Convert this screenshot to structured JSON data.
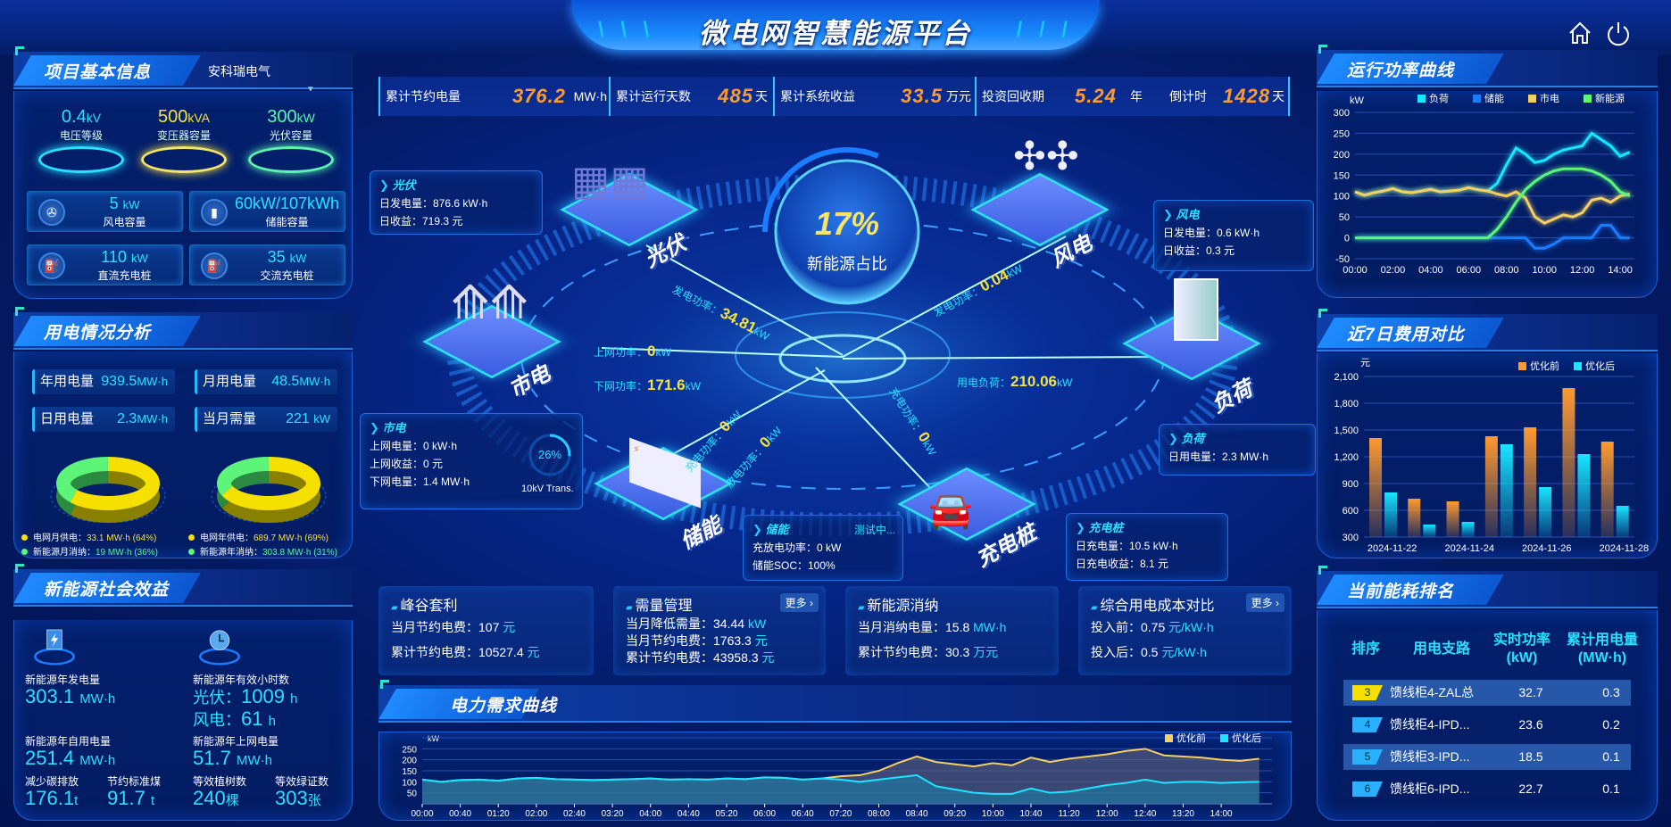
{
  "header": {
    "title": "微电网智慧能源平台",
    "home_icon": "home-icon",
    "power_icon": "power-icon"
  },
  "project_info": {
    "title": "项目基本信息",
    "company": "安科瑞电气",
    "kpis": [
      {
        "value": "0.4",
        "unit": "kV",
        "label": "电压等级",
        "color": "#29e1ff"
      },
      {
        "value": "500",
        "unit": "kVA",
        "label": "变压器容量",
        "color": "#f5e33a"
      },
      {
        "value": "300",
        "unit": "kW",
        "label": "光伏容量",
        "color": "#5cf5b0"
      }
    ],
    "capacities": [
      {
        "value": "5",
        "unit": "kW",
        "label": "风电容量",
        "icon": "wind-turbine-icon"
      },
      {
        "value": "60kW/107kWh",
        "unit": "",
        "label": "储能容量",
        "icon": "battery-icon"
      },
      {
        "value": "110",
        "unit": "kW",
        "label": "直流充电桩",
        "icon": "charger-icon"
      },
      {
        "value": "35",
        "unit": "kW",
        "label": "交流充电桩",
        "icon": "charger-icon"
      }
    ]
  },
  "usage": {
    "title": "用电情况分析",
    "items": [
      {
        "label": "年用电量",
        "value": "939.5",
        "unit": "MW·h"
      },
      {
        "label": "月用电量",
        "value": "48.5",
        "unit": "MW·h"
      },
      {
        "label": "日用电量",
        "value": "2.3",
        "unit": "MW·h"
      },
      {
        "label": "当月需量",
        "value": "221",
        "unit": "kW"
      }
    ],
    "donuts": [
      {
        "grid_pct": 64,
        "renewable_pct": 36,
        "grid_label": "电网月供电：",
        "grid_value": "33.1 MW·h (64%)",
        "ren_label": "新能源月消纳：",
        "ren_value": "19 MW·h (36%)"
      },
      {
        "grid_pct": 69,
        "renewable_pct": 31,
        "grid_label": "电网年供电：",
        "grid_value": "689.7 MW·h (69%)",
        "ren_label": "新能源年消纳：",
        "ren_value": "303.8 MW·h (31%)"
      }
    ],
    "colors": {
      "grid": "#f5e000",
      "renewable": "#5cf57a"
    }
  },
  "social": {
    "title": "新能源社会效益",
    "annual_gen_label": "新能源年发电量",
    "annual_gen_value": "303.1",
    "annual_gen_unit": "MW·h",
    "hours_label": "新能源年有效小时数",
    "pv_hours_label": "光伏：",
    "pv_hours": "1009",
    "wind_hours_label": "风电：",
    "wind_hours": "61",
    "hours_unit": "h",
    "self_use_label": "新能源年自用电量",
    "self_use_value": "251.4",
    "self_use_unit": "MW·h",
    "grid_feed_label": "新能源年上网电量",
    "grid_feed_value": "51.7",
    "grid_feed_unit": "MW·h",
    "carbon_label": "减少碳排放",
    "carbon_value": "176.1",
    "carbon_unit": "t",
    "coal_label": "节约标准煤",
    "coal_value": "91.7",
    "coal_unit": "t",
    "trees_label": "等效植树数",
    "trees_value": "240",
    "trees_unit": "棵",
    "cert_label": "等效绿证数",
    "cert_value": "303",
    "cert_unit": "张"
  },
  "stats": [
    {
      "label": "累计节约电量",
      "value": "376.2",
      "unit": "MW·h"
    },
    {
      "label": "累计运行天数",
      "value": "485",
      "unit": "天"
    },
    {
      "label": "累计系统收益",
      "value": "33.5",
      "unit": "万元"
    },
    {
      "label": "投资回收期",
      "value": "5.24",
      "unit": "年"
    },
    {
      "label": "倒计时",
      "value": "1428",
      "unit": "天"
    }
  ],
  "center": {
    "ratio": "17%",
    "ratio_label": "新能源占比",
    "ratio_value": 17,
    "nodes": {
      "pv": "光伏",
      "grid": "市电",
      "storage": "储能",
      "charger": "充电桩",
      "load": "负荷",
      "wind": "风电"
    },
    "flows": {
      "pv": {
        "label": "发电功率：",
        "value": "34.81",
        "unit": "kW"
      },
      "grid_up": {
        "label": "上网功率：",
        "value": "0",
        "unit": "kW"
      },
      "grid_down": {
        "label": "下网功率：",
        "value": "171.6",
        "unit": "kW"
      },
      "wind": {
        "label": "发电功率：",
        "value": "0.04",
        "unit": "kW"
      },
      "load": {
        "label": "用电负荷：",
        "value": "210.06",
        "unit": "kW"
      },
      "storage_charge": {
        "label": "充电功率：",
        "value": "0",
        "unit": "kW"
      },
      "storage_discharge": {
        "label": "放电功率：",
        "value": "0",
        "unit": "kW"
      },
      "charger": {
        "label": "充电功率：",
        "value": "0",
        "unit": "kW"
      }
    },
    "transformer": {
      "load_pct": "26%",
      "load_value": 26,
      "label": "10kV Trans."
    },
    "boxes": {
      "pv": {
        "title": "光伏",
        "rows": [
          "日发电量：876.6 kW·h",
          "日收益：719.3 元"
        ]
      },
      "wind": {
        "title": "风电",
        "rows": [
          "日发电量：0.6 kW·h",
          "日收益：0.3 元"
        ]
      },
      "grid": {
        "title": "市电",
        "rows": [
          "上网电量：0 kW·h",
          "上网收益：0 元",
          "下网电量：1.4 MW·h"
        ]
      },
      "load": {
        "title": "负荷",
        "rows": [
          "日用电量：2.3 MW·h"
        ]
      },
      "storage": {
        "title": "储能",
        "status": "测试中...",
        "rows": [
          "充放电功率：0 kW",
          "储能SOC：100%"
        ]
      },
      "charger": {
        "title": "充电桩",
        "rows": [
          "日充电量：10.5 kW·h",
          "日充电收益：8.1 元"
        ]
      }
    }
  },
  "cards": [
    {
      "title": "峰谷套利",
      "rows": [
        {
          "label": "当月节约电费：",
          "value": "107",
          "unit": "元"
        },
        {
          "label": "累计节约电费：",
          "value": "10527.4",
          "unit": "元"
        }
      ]
    },
    {
      "title": "需量管理",
      "more": "更多 ›",
      "rows": [
        {
          "label": "当月降低需量：",
          "value": "34.44",
          "unit": "kW"
        },
        {
          "label": "当月节约电费：",
          "value": "1763.3",
          "unit": "元"
        },
        {
          "label": "累计节约电费：",
          "value": "43958.3",
          "unit": "元"
        }
      ]
    },
    {
      "title": "新能源消纳",
      "rows": [
        {
          "label": "当月消纳电量：",
          "value": "15.8",
          "unit": "MW·h"
        },
        {
          "label": "累计节约电费：",
          "value": "30.3",
          "unit": "万元"
        }
      ]
    },
    {
      "title": "综合用电成本对比",
      "more": "更多 ›",
      "rows": [
        {
          "label": "投入前：",
          "value": "0.75",
          "unit": "元/kW·h"
        },
        {
          "label": "投入后：",
          "value": "0.5",
          "unit": "元/kW·h"
        }
      ]
    }
  ],
  "ranking": {
    "title": "当前能耗排名",
    "headers": [
      "排序",
      "用电支路",
      "实时功率\n(kW)",
      "累计用电量\n(MW·h)"
    ],
    "rows": [
      {
        "rank": "3",
        "name": "馈线柜4-ZAL总",
        "power": "32.7",
        "energy": "0.3",
        "badge": "#f5e000"
      },
      {
        "rank": "4",
        "name": "馈线柜4-IPD...",
        "power": "23.6",
        "energy": "0.2",
        "badge": "#2ab0ff"
      },
      {
        "rank": "5",
        "name": "馈线柜3-IPD...",
        "power": "18.5",
        "energy": "0.1",
        "badge": "#2ab0ff"
      },
      {
        "rank": "6",
        "name": "馈线柜6-IPD...",
        "power": "22.7",
        "energy": "0.1",
        "badge": "#2ab0ff"
      }
    ]
  },
  "chart_data": [
    {
      "id": "run-power",
      "title": "运行功率曲线",
      "type": "line",
      "ylabel": "kW",
      "ylim": [
        -50,
        300
      ],
      "yticks": [
        -50,
        0,
        50,
        100,
        150,
        200,
        250,
        300
      ],
      "xticks": [
        "00:00",
        "02:00",
        "04:00",
        "06:00",
        "08:00",
        "10:00",
        "12:00",
        "14:00"
      ],
      "x": [
        "00:00",
        "00:30",
        "01:00",
        "01:30",
        "02:00",
        "02:30",
        "03:00",
        "03:30",
        "04:00",
        "04:30",
        "05:00",
        "05:30",
        "06:00",
        "06:30",
        "07:00",
        "07:30",
        "08:00",
        "08:30",
        "09:00",
        "09:30",
        "10:00",
        "10:30",
        "11:00",
        "11:30",
        "12:00",
        "12:30",
        "13:00",
        "13:30",
        "14:00",
        "14:30"
      ],
      "legend": "top",
      "series": [
        {
          "name": "负荷",
          "color": "#19e6ff",
          "values": [
            110,
            102,
            108,
            112,
            118,
            110,
            108,
            112,
            116,
            110,
            112,
            114,
            120,
            115,
            112,
            130,
            175,
            215,
            200,
            180,
            185,
            200,
            210,
            215,
            220,
            250,
            235,
            220,
            195,
            205
          ]
        },
        {
          "name": "储能",
          "color": "#1a7cff",
          "values": [
            0,
            0,
            0,
            0,
            0,
            0,
            0,
            0,
            0,
            0,
            0,
            0,
            0,
            0,
            0,
            0,
            0,
            0,
            0,
            -25,
            -25,
            -15,
            0,
            0,
            0,
            0,
            30,
            30,
            0,
            0
          ]
        },
        {
          "name": "市电",
          "color": "#f5d060",
          "values": [
            110,
            102,
            108,
            112,
            118,
            110,
            108,
            112,
            116,
            110,
            112,
            114,
            120,
            115,
            112,
            105,
            100,
            110,
            95,
            50,
            35,
            45,
            55,
            50,
            60,
            90,
            95,
            85,
            100,
            105
          ]
        },
        {
          "name": "新能源",
          "color": "#5cf57a",
          "values": [
            0,
            0,
            0,
            0,
            0,
            0,
            0,
            0,
            0,
            0,
            0,
            0,
            0,
            0,
            0,
            20,
            50,
            85,
            115,
            135,
            150,
            160,
            165,
            165,
            165,
            160,
            150,
            135,
            110,
            100
          ]
        }
      ]
    },
    {
      "id": "cost-7day",
      "title": "近7日费用对比",
      "type": "bar",
      "ylabel": "元",
      "ylim": [
        300,
        2100
      ],
      "yticks": [
        300,
        600,
        900,
        1200,
        1500,
        1800,
        2100
      ],
      "categories": [
        "2024-11-22",
        "2024-11-23",
        "2024-11-24",
        "2024-11-25",
        "2024-11-26",
        "2024-11-27",
        "2024-11-28"
      ],
      "xticks": [
        "2024-11-22",
        "2024-11-24",
        "2024-11-26",
        "2024-11-28"
      ],
      "legend": "top-right",
      "series": [
        {
          "name": "优化前",
          "color": "#ff9a2e",
          "values": [
            1410,
            730,
            700,
            1430,
            1530,
            1970,
            1370
          ]
        },
        {
          "name": "优化后",
          "color": "#19e6ff",
          "values": [
            800,
            440,
            470,
            1340,
            860,
            1230,
            650
          ]
        }
      ]
    },
    {
      "id": "demand",
      "title": "电力需求曲线",
      "type": "area",
      "ylabel": "kW",
      "ylim": [
        0,
        300
      ],
      "yticks": [
        50,
        100,
        150,
        200,
        250
      ],
      "xticks": [
        "00:00",
        "00:40",
        "01:20",
        "02:00",
        "02:40",
        "03:20",
        "04:00",
        "04:40",
        "05:20",
        "06:00",
        "06:40",
        "07:20",
        "08:00",
        "08:40",
        "09:20",
        "10:00",
        "10:40",
        "11:20",
        "12:00",
        "12:40",
        "13:20",
        "14:00"
      ],
      "x": [
        "00:00",
        "00:20",
        "00:40",
        "01:00",
        "01:20",
        "01:40",
        "02:00",
        "02:20",
        "02:40",
        "03:00",
        "03:20",
        "03:40",
        "04:00",
        "04:20",
        "04:40",
        "05:00",
        "05:20",
        "05:40",
        "06:00",
        "06:20",
        "06:40",
        "07:00",
        "07:20",
        "07:40",
        "08:00",
        "08:20",
        "08:40",
        "09:00",
        "09:20",
        "09:40",
        "10:00",
        "10:20",
        "10:40",
        "11:00",
        "11:20",
        "11:40",
        "12:00",
        "12:20",
        "12:40",
        "13:00",
        "13:20",
        "13:40",
        "14:00",
        "14:20",
        "14:40"
      ],
      "legend": "top-right",
      "series": [
        {
          "name": "优化前",
          "color": "#f5d060",
          "values": [
            110,
            100,
            108,
            110,
            105,
            115,
            118,
            112,
            110,
            108,
            110,
            112,
            115,
            110,
            112,
            110,
            115,
            112,
            120,
            118,
            110,
            115,
            125,
            130,
            150,
            185,
            215,
            190,
            180,
            170,
            185,
            175,
            210,
            190,
            205,
            215,
            225,
            240,
            250,
            220,
            215,
            210,
            200,
            195,
            205
          ]
        },
        {
          "name": "优化后",
          "color": "#19e6ff",
          "values": [
            110,
            100,
            108,
            110,
            105,
            115,
            118,
            112,
            110,
            108,
            110,
            112,
            115,
            110,
            112,
            110,
            115,
            112,
            120,
            118,
            110,
            115,
            110,
            100,
            110,
            120,
            130,
            80,
            65,
            50,
            45,
            45,
            70,
            50,
            55,
            70,
            85,
            95,
            110,
            95,
            100,
            100,
            95,
            98,
            100
          ]
        }
      ]
    }
  ]
}
